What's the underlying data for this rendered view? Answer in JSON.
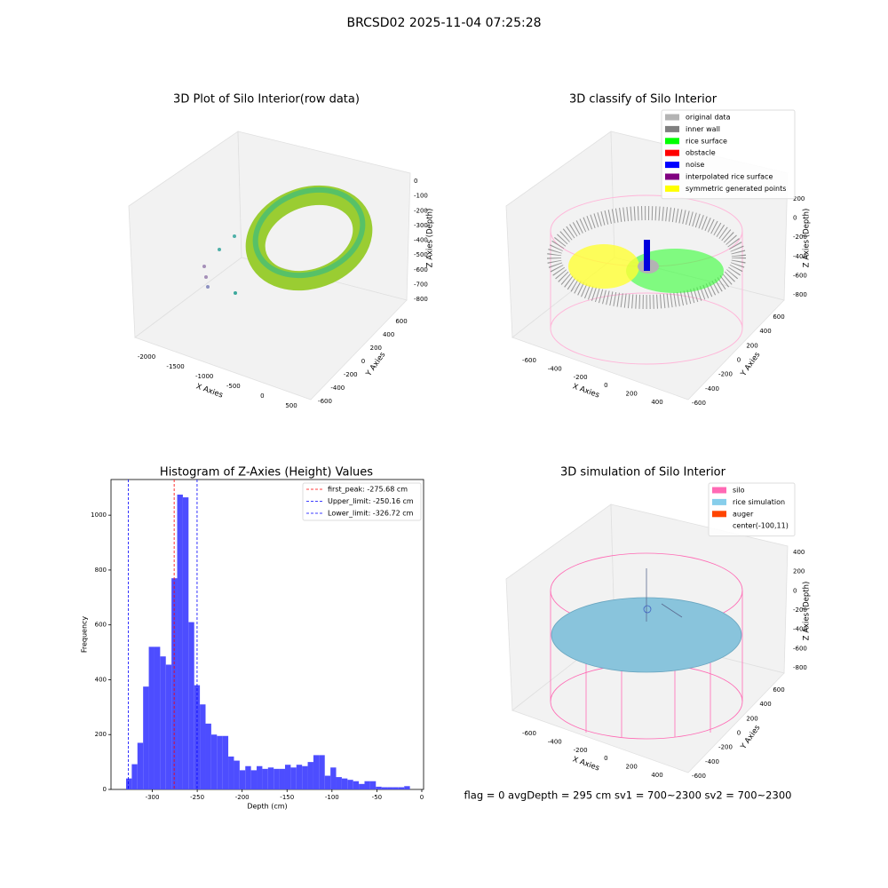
{
  "title": "BRCSD02 2025-11-04 07:25:28",
  "footer": "flag = 0     avgDepth = 295 cm  sv1 = 700~2300  sv2 = 700~2300",
  "chart_data": [
    {
      "type": "scatter3d",
      "title": "3D Plot of Silo Interior(row data)",
      "xlabel": "X Axies",
      "ylabel": "Y Axies",
      "zlabel": "Z Axies (Depth)",
      "xticks": [
        -2000,
        -1500,
        -1000,
        -500,
        0,
        500
      ],
      "yticks": [
        -600,
        -400,
        -200,
        0,
        200,
        400,
        600
      ],
      "zticks": [
        0,
        -100,
        -200,
        -300,
        -400,
        -500,
        -600,
        -700,
        -800
      ]
    },
    {
      "type": "scatter3d",
      "title": "3D classify of Silo Interior",
      "xlabel": "X Axies",
      "ylabel": "Y Axies",
      "zlabel": "Z Axies (Depth)",
      "xticks": [
        -600,
        -400,
        -200,
        0,
        200,
        400
      ],
      "yticks": [
        -600,
        -400,
        -200,
        0,
        200,
        400,
        600
      ],
      "zticks": [
        200,
        0,
        -200,
        -400,
        -600,
        -800
      ],
      "legend": [
        {
          "name": "original data",
          "color": "#b3b3b3"
        },
        {
          "name": "inner wall",
          "color": "#808080"
        },
        {
          "name": "rice surface",
          "color": "#00ff00"
        },
        {
          "name": "obstacle",
          "color": "#ff0000"
        },
        {
          "name": "noise",
          "color": "#0000ff"
        },
        {
          "name": "interpolated rice surface",
          "color": "#800080"
        },
        {
          "name": "symmetric generated points",
          "color": "#ffff00"
        }
      ]
    },
    {
      "type": "histogram",
      "title": "Histogram of Z-Axies (Height) Values",
      "xlabel": "Depth (cm)",
      "ylabel": "Frequency",
      "color": "#4d4dff",
      "bins": [
        -329.2,
        -322.88,
        -316.56,
        -310.24,
        -303.92,
        -297.6,
        -291.28,
        -284.96,
        -278.64,
        -272.32,
        -266,
        -259.68,
        -253.36,
        -247.04,
        -240.72,
        -234.4,
        -228.08,
        -221.76,
        -215.44,
        -209.12,
        -202.8,
        -196.48,
        -190.16,
        -183.84,
        -177.52,
        -171.2,
        -164.88,
        -158.56,
        -152.24,
        -145.92,
        -139.6,
        -133.28,
        -126.96,
        -120.64,
        -114.32,
        -108,
        -101.68,
        -95.36,
        -89.04,
        -82.72,
        -76.4,
        -70.08,
        -63.76,
        -57.44,
        -51.12,
        -44.8,
        -38.48,
        -32.16,
        -25.84,
        -19.52,
        -13.2
      ],
      "values": [
        40,
        92,
        170,
        375,
        520,
        520,
        485,
        455,
        770,
        1075,
        1065,
        610,
        380,
        310,
        240,
        200,
        195,
        195,
        120,
        105,
        70,
        85,
        70,
        85,
        75,
        80,
        75,
        75,
        90,
        80,
        90,
        85,
        100,
        125,
        125,
        50,
        80,
        45,
        40,
        35,
        30,
        20,
        30,
        30,
        10,
        8,
        8,
        8,
        8,
        12
      ],
      "xlim": [
        -346,
        2
      ],
      "ylim": [
        0,
        1130
      ],
      "xticks": [
        -300,
        -250,
        -200,
        -150,
        -100,
        -50,
        0
      ],
      "yticks": [
        0,
        200,
        400,
        600,
        800,
        1000
      ],
      "vlines": [
        {
          "name": "first_peak: -275.68 cm",
          "value": -275.68,
          "color": "#ff0000"
        },
        {
          "name": "Upper_limit: -250.16 cm",
          "value": -250.16,
          "color": "#0000ff"
        },
        {
          "name": "Lower_limit: -326.72 cm",
          "value": -326.72,
          "color": "#0000ff"
        }
      ]
    },
    {
      "type": "surface3d",
      "title": "3D simulation of Silo Interior",
      "xlabel": "X Axies",
      "ylabel": "Y Axies",
      "zlabel": "Z Axies (Depth)",
      "xticks": [
        -600,
        -400,
        -200,
        0,
        200,
        400
      ],
      "yticks": [
        -600,
        -400,
        -200,
        0,
        200,
        400,
        600
      ],
      "zticks": [
        400,
        200,
        0,
        -200,
        -400,
        -600,
        -800
      ],
      "legend": [
        {
          "name": "silo",
          "color": "#ff69b4"
        },
        {
          "name": "rice simulation",
          "color": "#87ceeb"
        },
        {
          "name": "auger",
          "color": "#ff4500"
        },
        {
          "name": "center(-100,11)"
        }
      ]
    }
  ]
}
